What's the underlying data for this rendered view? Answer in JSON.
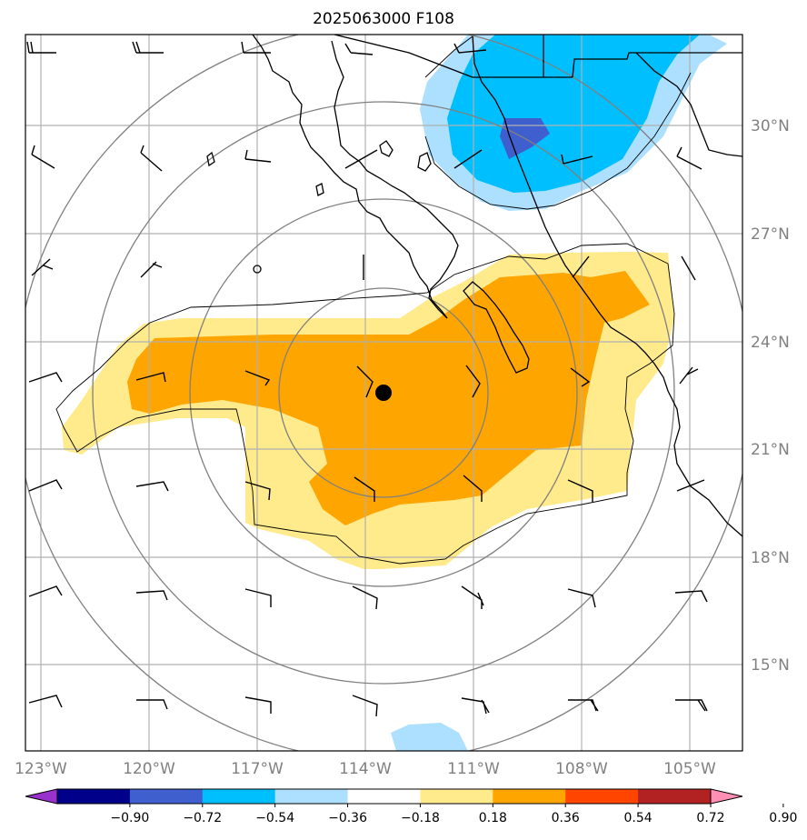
{
  "title": "2025063000 F108",
  "map": {
    "lat_labels": [
      "30°N",
      "27°N",
      "24°N",
      "21°N",
      "18°N",
      "15°N"
    ],
    "lon_labels": [
      "123°W",
      "120°W",
      "117°W",
      "114°W",
      "111°W",
      "108°W",
      "105°W"
    ],
    "center_marker": "storm-center-dot",
    "colors": {
      "pos_light": "#ffea8c",
      "pos_mid": "#ffa500",
      "neg_light": "#ade0ff",
      "neg_mid": "#00bfff",
      "neg_dark": "#3f5fcf",
      "gridline": "#b0b0b0",
      "range_ring": "#808080",
      "coast": "#000000"
    }
  },
  "colorbar": {
    "ticks": [
      "−0.90",
      "−0.72",
      "−0.54",
      "−0.36",
      "−0.18",
      "0.18",
      "0.36",
      "0.54",
      "0.72",
      "0.90"
    ],
    "colors": [
      "#9932cc",
      "#00008b",
      "#3f5fcf",
      "#00bfff",
      "#ade0ff",
      "#ffffff",
      "#ffea8c",
      "#ffa500",
      "#ff4500",
      "#b22222",
      "#ff8fb5"
    ]
  }
}
